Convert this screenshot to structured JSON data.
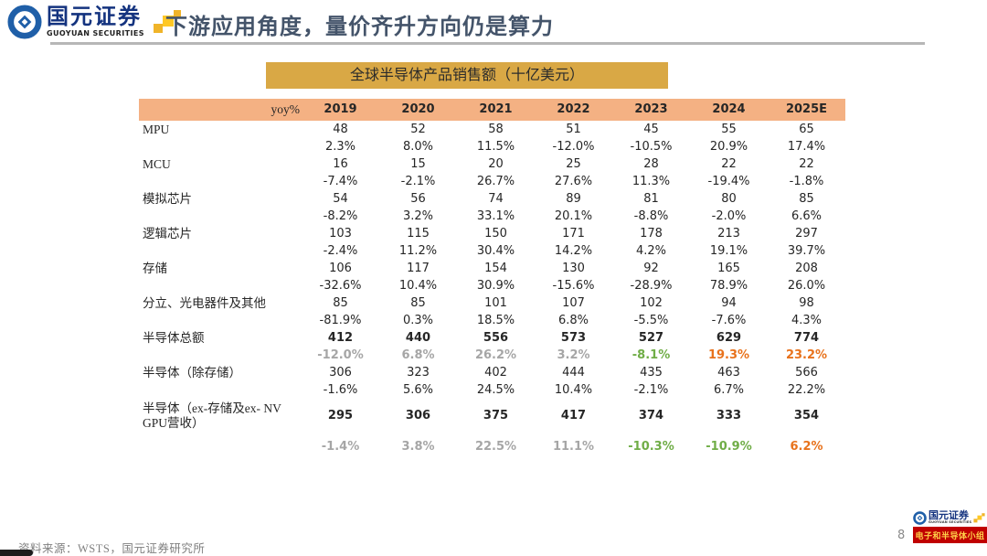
{
  "brand": {
    "name_cn": "国元证券",
    "name_en": "GUOYUAN SECURITIES"
  },
  "header": {
    "title": "下游应用角度，量价齐升方向仍是算力"
  },
  "table": {
    "title": "全球半导体产品销售额（十亿美元）",
    "yoy_label": "yoy%",
    "years": [
      "2019",
      "2020",
      "2021",
      "2022",
      "2023",
      "2024",
      "2025E"
    ],
    "rows": [
      {
        "label": "MPU",
        "bold": false,
        "values": [
          "48",
          "52",
          "58",
          "51",
          "45",
          "55",
          "65"
        ],
        "yoy": [
          "2.3%",
          "8.0%",
          "11.5%",
          "-12.0%",
          "-10.5%",
          "20.9%",
          "17.4%"
        ]
      },
      {
        "label": "MCU",
        "bold": false,
        "values": [
          "16",
          "15",
          "20",
          "25",
          "28",
          "22",
          "22"
        ],
        "yoy": [
          "-7.4%",
          "-2.1%",
          "26.7%",
          "27.6%",
          "11.3%",
          "-19.4%",
          "-1.8%"
        ]
      },
      {
        "label": "模拟芯片",
        "bold": false,
        "values": [
          "54",
          "56",
          "74",
          "89",
          "81",
          "80",
          "85"
        ],
        "yoy": [
          "-8.2%",
          "3.2%",
          "33.1%",
          "20.1%",
          "-8.8%",
          "-2.0%",
          "6.6%"
        ]
      },
      {
        "label": "逻辑芯片",
        "bold": false,
        "values": [
          "103",
          "115",
          "150",
          "171",
          "178",
          "213",
          "297"
        ],
        "yoy": [
          "-2.4%",
          "11.2%",
          "30.4%",
          "14.2%",
          "4.2%",
          "19.1%",
          "39.7%"
        ]
      },
      {
        "label": "存储",
        "bold": false,
        "values": [
          "106",
          "117",
          "154",
          "130",
          "92",
          "165",
          "208"
        ],
        "yoy": [
          "-32.6%",
          "10.4%",
          "30.9%",
          "-15.6%",
          "-28.9%",
          "78.9%",
          "26.0%"
        ]
      },
      {
        "label": "分立、光电器件及其他",
        "bold": false,
        "values": [
          "85",
          "85",
          "101",
          "107",
          "102",
          "94",
          "98"
        ],
        "yoy": [
          "-81.9%",
          "0.3%",
          "18.5%",
          "6.8%",
          "-5.5%",
          "-7.6%",
          "4.3%"
        ]
      },
      {
        "label": "半导体总额",
        "bold": true,
        "yoy_bold": true,
        "values": [
          "412",
          "440",
          "556",
          "573",
          "527",
          "629",
          "774"
        ],
        "yoy": [
          "-12.0%",
          "6.8%",
          "26.2%",
          "3.2%",
          "-8.1%",
          "19.3%",
          "23.2%"
        ],
        "yoy_colors": [
          "gray",
          "gray",
          "gray",
          "gray",
          "green",
          "orange",
          "orange"
        ]
      },
      {
        "label": "半导体（除存储）",
        "bold": false,
        "values": [
          "306",
          "323",
          "402",
          "444",
          "435",
          "463",
          "566"
        ],
        "yoy": [
          "-1.6%",
          "5.6%",
          "24.5%",
          "10.4%",
          "-2.1%",
          "6.7%",
          "22.2%"
        ]
      },
      {
        "label": "半导体（ex-存储及ex- NV GPU营收）",
        "bold": true,
        "yoy_bold": true,
        "multiline": true,
        "values": [
          "295",
          "306",
          "375",
          "417",
          "374",
          "333",
          "354"
        ],
        "yoy": [
          "-1.4%",
          "3.8%",
          "22.5%",
          "11.1%",
          "-10.3%",
          "-10.9%",
          "6.2%"
        ],
        "yoy_colors": [
          "gray",
          "gray",
          "gray",
          "gray",
          "green",
          "green",
          "orange"
        ]
      }
    ]
  },
  "footer": {
    "source": "资料来源：WSTS，国元证券研究所",
    "page_number": "8",
    "banner": "电子和半导体小组"
  },
  "colors": {
    "title_blue": "#44546a",
    "gold_bar": "#d9a845",
    "header_band": "#f4b183",
    "yoy_gray": "#a6a6a6",
    "yoy_green": "#70ad47",
    "yoy_orange": "#e8721c",
    "brand_blue": "#1f5fa8",
    "banner_red": "#c00000",
    "banner_yellow": "#ffd24a"
  }
}
